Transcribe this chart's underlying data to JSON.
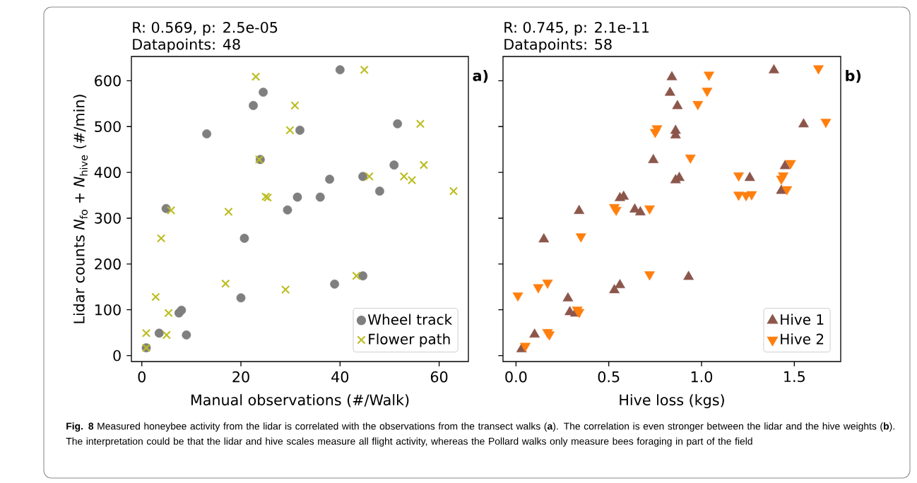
{
  "chart_data": [
    {
      "type": "scatter",
      "title": "R: 0.569, p: 2.5e-05",
      "subtitle": "Datapoints: 48",
      "xlabel": "Manual observations (#/Walk)",
      "ylabel": "Lidar counts *N*$_{fo}$ + *N*$_{hive}$ (#/min)",
      "annotations": [
        "a)",
        "**Fig. 8** Measured honeybee activity from the lidar is correlated with the observations from the transect walks (**a**). The correlation is even stronger between the lidar and the hive weights (**b**). The interpretation could be that the lidar and hive scales measure all flight activity, whereas the Pollard walks only measure bees foraging in part of the field"
      ],
      "xlim": [
        -2.1,
        65.9
      ],
      "ylim": [
        -13,
        653
      ],
      "xticks": [
        0,
        20,
        40,
        60
      ],
      "yticks": [
        0,
        100,
        200,
        300,
        400,
        500,
        600
      ],
      "grid": false,
      "legend": "bottom right",
      "series": [
        {
          "name": "Wheel track",
          "color": "#7f7f7f",
          "marker": "circle",
          "x": [
            4.9,
            13.1,
            22.5,
            24.5,
            23.9,
            31.9,
            40.0,
            29.4,
            31.4,
            36.0,
            37.9,
            44.6,
            48.0,
            50.9,
            51.6,
            20.7,
            20.0,
            38.9,
            44.6,
            3.5,
            7.5,
            8.0,
            9.0,
            0.9
          ],
          "values": [
            321,
            484,
            546,
            575,
            428,
            492,
            624,
            318,
            346,
            346,
            385,
            391,
            359,
            416,
            506,
            256,
            126,
            156,
            174,
            49,
            93,
            99,
            45,
            17
          ]
        },
        {
          "name": "Flower path",
          "color": "#bcbd22",
          "marker": "cross",
          "x": [
            5.9,
            23.0,
            30.9,
            29.9,
            23.7,
            44.9,
            56.2,
            45.9,
            56.9,
            52.9,
            54.5,
            62.9,
            25.0,
            25.4,
            17.5,
            3.9,
            16.9,
            29.0,
            43.3,
            2.8,
            5.4,
            0.9,
            5.0,
            0.9
          ],
          "values": [
            317,
            609,
            546,
            492,
            428,
            624,
            506,
            391,
            416,
            391,
            383,
            359,
            347,
            345,
            314,
            256,
            157,
            144,
            174,
            128,
            93,
            49,
            45,
            17
          ]
        }
      ]
    },
    {
      "type": "scatter",
      "title": "R: 0.745, p: 2.1e-11",
      "subtitle": "Datapoints: 58",
      "xlabel": "Hive loss (kgs)",
      "annotations": [
        "b)"
      ],
      "xlim": [
        -0.07,
        1.75
      ],
      "ylim": [
        -13,
        653
      ],
      "xticks": [
        {
          "value": 0,
          "label": "0.0"
        },
        0.5,
        {
          "value": 1,
          "label": "1.0"
        },
        1.5
      ],
      "yticks": [
        0,
        100,
        200,
        300,
        400,
        500,
        600
      ],
      "tick_labels": "x",
      "grid": false,
      "legend": "bottom right",
      "series": [
        {
          "name": "Hive 1",
          "color": "#8c564b",
          "marker": "triangle",
          "x": [
            1.39,
            0.84,
            0.83,
            0.87,
            1.55,
            0.86,
            0.86,
            0.74,
            0.88,
            0.86,
            1.26,
            1.45,
            1.43,
            0.56,
            0.58,
            0.34,
            0.64,
            0.67,
            0.15,
            0.93,
            0.56,
            0.53,
            0.28,
            0.29,
            0.32,
            0.1,
            0.03
          ],
          "values": [
            623,
            608,
            574,
            545,
            505,
            491,
            481,
            427,
            388,
            383,
            388,
            414,
            360,
            344,
            347,
            316,
            319,
            313,
            254,
            172,
            154,
            143,
            125,
            95,
            92,
            46,
            14
          ]
        },
        {
          "name": "Hive 2",
          "color": "#ff7f0e",
          "marker": "triangle_down",
          "x": [
            1.63,
            1.04,
            1.03,
            0.98,
            1.67,
            0.76,
            0.75,
            0.94,
            1.2,
            1.44,
            1.43,
            1.48,
            1.46,
            1.2,
            1.24,
            1.27,
            0.53,
            0.54,
            0.72,
            0.35,
            0.72,
            0.01,
            0.12,
            0.17,
            0.33,
            0.34,
            0.17,
            0.18,
            0.05
          ],
          "values": [
            627,
            613,
            578,
            549,
            510,
            496,
            488,
            432,
            393,
            393,
            386,
            420,
            363,
            351,
            350,
            352,
            324,
            318,
            321,
            260,
            177,
            131,
            149,
            159,
            100,
            95,
            51,
            46,
            21
          ]
        }
      ]
    }
  ]
}
